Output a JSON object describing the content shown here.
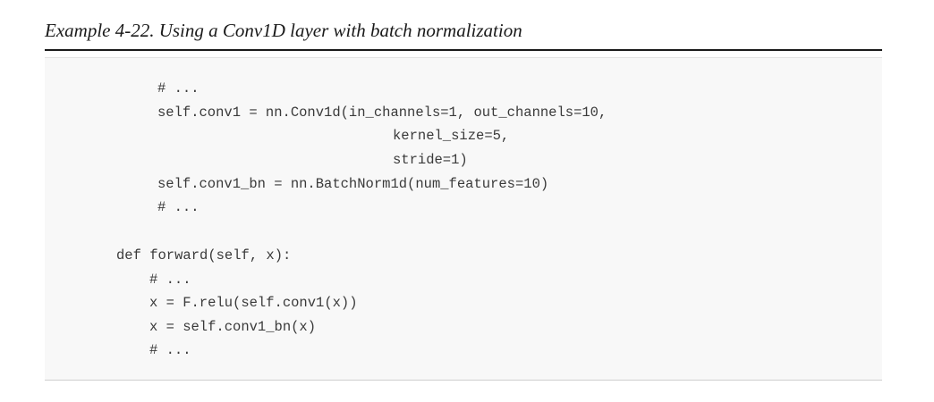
{
  "caption": "Example 4-22. Using a Conv1D layer with batch normalization",
  "code": {
    "line1": "# ...",
    "line2": "self.conv1 = nn.Conv1d(in_channels=1, out_channels=10,",
    "line3": "kernel_size=5,",
    "line4": "stride=1)",
    "line5": "self.conv1_bn = nn.BatchNorm1d(num_features=10)",
    "line6": "# ...",
    "line7": "def forward(self, x):",
    "line8": "# ...",
    "line9": "x = F.relu(self.conv1(x))",
    "line10": "x = self.conv1_bn(x)",
    "line11": "# ..."
  }
}
